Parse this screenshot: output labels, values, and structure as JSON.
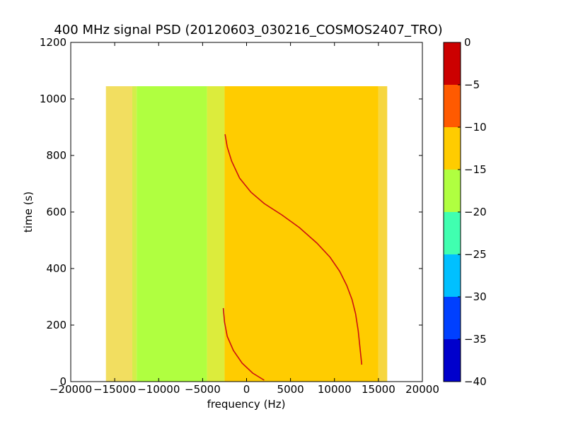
{
  "chart_data": {
    "type": "heatmap",
    "title": "400 MHz signal PSD (20120603_030216_COSMOS2407_TRO)",
    "xlabel": "frequency (Hz)",
    "ylabel": "time (s)",
    "xlim": [
      -20000,
      20000
    ],
    "ylim": [
      0,
      1200
    ],
    "x_ticks": [
      -20000,
      -15000,
      -10000,
      -5000,
      0,
      5000,
      10000,
      15000,
      20000
    ],
    "x_tick_labels": [
      "−20000",
      "−15000",
      "−10000",
      "−5000",
      "0",
      "5000",
      "10000",
      "15000",
      "20000"
    ],
    "y_ticks": [
      0,
      200,
      400,
      600,
      800,
      1000,
      1200
    ],
    "y_tick_labels": [
      "0",
      "200",
      "400",
      "600",
      "800",
      "1000",
      "1200"
    ],
    "data_extent": {
      "x": [
        -16000,
        16000
      ],
      "y": [
        0,
        1045
      ]
    },
    "grid": false,
    "colorbar": {
      "levels": [
        -40,
        -35,
        -30,
        -25,
        -20,
        -15,
        -10,
        -5,
        0
      ],
      "tick_labels": [
        "−40",
        "−35",
        "−30",
        "−25",
        "−20",
        "−15",
        "−10",
        "−5",
        "0"
      ],
      "colors": [
        "#0000cc",
        "#0040ff",
        "#00c0ff",
        "#40ffb0",
        "#b0ff40",
        "#ffcc00",
        "#ff5a00",
        "#cc0000"
      ]
    },
    "bands": [
      {
        "x": [
          -16000,
          -13000
        ],
        "level": "-15 to -10",
        "color": "#f2de60"
      },
      {
        "x": [
          -13000,
          -12500
        ],
        "level": "-20 to -15",
        "color": "#d4ee4a"
      },
      {
        "x": [
          -12500,
          -4500
        ],
        "level": "-20 to -15",
        "color": "#b0ff40"
      },
      {
        "x": [
          -4500,
          -2500
        ],
        "level": "-20 to -15 / -15 to -10",
        "color": "#dcec3c"
      },
      {
        "x": [
          -2500,
          15000
        ],
        "level": "-15 to -10",
        "color": "#ffcc00"
      },
      {
        "x": [
          15000,
          16000
        ],
        "level": "-15 to -10",
        "color": "#f6d640"
      }
    ],
    "series": [
      {
        "values": [
          [
            -2450,
            875
          ],
          [
            -2200,
            830
          ],
          [
            -1700,
            780
          ],
          [
            -800,
            720
          ],
          [
            500,
            670
          ],
          [
            2000,
            630
          ],
          [
            4000,
            590
          ],
          [
            6000,
            545
          ],
          [
            8000,
            490
          ],
          [
            9500,
            440
          ],
          [
            10600,
            390
          ],
          [
            11400,
            340
          ],
          [
            12000,
            290
          ],
          [
            12400,
            240
          ],
          [
            12700,
            180
          ],
          [
            12900,
            120
          ],
          [
            13100,
            60
          ]
        ]
      },
      {
        "values": [
          [
            -2650,
            260
          ],
          [
            -2500,
            210
          ],
          [
            -2200,
            160
          ],
          [
            -1500,
            110
          ],
          [
            -500,
            65
          ],
          [
            700,
            30
          ],
          [
            2000,
            5
          ]
        ]
      }
    ],
    "trace_color": "#cc1111",
    "legend": "none"
  }
}
